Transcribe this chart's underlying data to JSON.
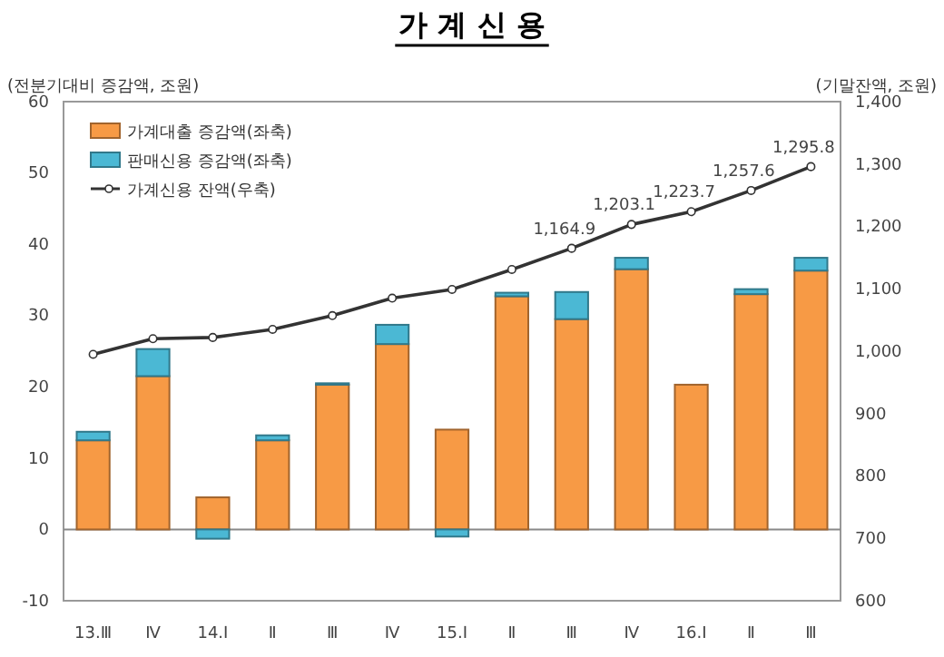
{
  "chart_data": {
    "type": "bar",
    "title": "가 계 신 용",
    "ylabel": "(전분기대비 증감액, 조원)",
    "y2label": "(기말잔액, 조원)",
    "categories": [
      "13.Ⅲ",
      "Ⅳ",
      "14.Ⅰ",
      "Ⅱ",
      "Ⅲ",
      "Ⅳ",
      "15.Ⅰ",
      "Ⅱ",
      "Ⅲ",
      "Ⅳ",
      "16.Ⅰ",
      "Ⅱ",
      "Ⅲ"
    ],
    "stacked": true,
    "series": [
      {
        "name": "가계대출 증감액(좌축)",
        "color": "#f79a45",
        "values": [
          12.5,
          21.5,
          4.5,
          12.5,
          20.3,
          26,
          14,
          32.7,
          29.5,
          36.5,
          20.3,
          33,
          36.3
        ]
      },
      {
        "name": "판매신용 증감액(좌축)",
        "color": "#4bb8d4",
        "values": [
          1.2,
          3.8,
          -1.3,
          0.7,
          0.2,
          2.7,
          -1.0,
          0.5,
          3.8,
          1.6,
          0,
          0.7,
          1.8
        ]
      },
      {
        "name": "가계신용 잔액(우축)",
        "type": "line",
        "axis": "y2",
        "color": "#333333",
        "marker": "circle",
        "values": [
          995,
          1020,
          1022,
          1035,
          1057,
          1085,
          1099,
          1131,
          1164.9,
          1203.1,
          1223.7,
          1257.6,
          1295.8
        ],
        "value_labels": [
          null,
          null,
          null,
          null,
          null,
          null,
          null,
          null,
          "1,164.9",
          "1,203.1",
          "1,223.7",
          "1,257.6",
          "1,295.8"
        ]
      }
    ],
    "ylim": [
      -10,
      60
    ],
    "yticks": [
      -10,
      0,
      10,
      20,
      30,
      40,
      50,
      60
    ],
    "y2lim": [
      600,
      1400
    ],
    "y2ticks": [
      600,
      700,
      800,
      900,
      {
        "value": 1000,
        "label": "1,000"
      },
      {
        "value": 1100,
        "label": "1,100"
      },
      {
        "value": 1200,
        "label": "1,200"
      },
      {
        "value": 1300,
        "label": "1,300"
      },
      {
        "value": 1400,
        "label": "1,400"
      }
    ],
    "legend": "top left"
  }
}
